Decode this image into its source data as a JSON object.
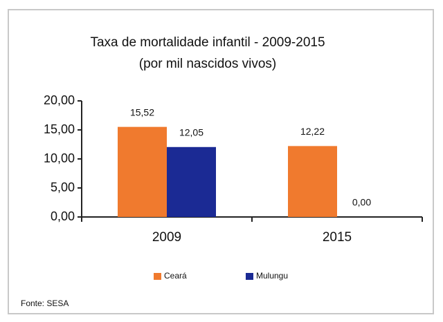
{
  "chart_data": {
    "type": "bar",
    "title": "Taxa de mortalidade infantil - 2009-2015",
    "subtitle": "(por mil nascidos vivos)",
    "categories": [
      "2009",
      "2015"
    ],
    "series": [
      {
        "name": "Ceará",
        "color": "#f07a2e",
        "values": [
          15.52,
          12.22
        ],
        "value_labels": [
          "15,52",
          "12,22"
        ]
      },
      {
        "name": "Mulungu",
        "color": "#1b2a94",
        "values": [
          12.05,
          0
        ],
        "value_labels": [
          "12,05",
          "0,00"
        ]
      }
    ],
    "ylim": [
      0,
      20
    ],
    "yticks": [
      {
        "value": 0,
        "label": "0,00"
      },
      {
        "value": 5,
        "label": "5,00"
      },
      {
        "value": 10,
        "label": "10,00"
      },
      {
        "value": 15,
        "label": "15,00"
      },
      {
        "value": 20,
        "label": "20,00"
      }
    ],
    "legend": "bottom",
    "source": "Fonte: SESA"
  }
}
